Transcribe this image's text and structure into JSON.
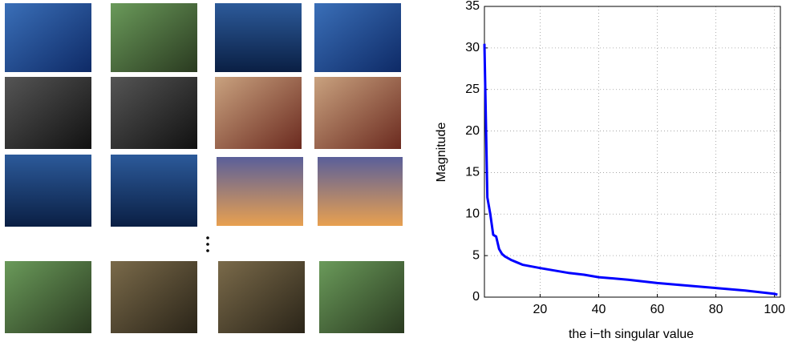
{
  "chart_data": {
    "type": "line",
    "xlabel": "the i−th singular value",
    "ylabel": "Magnitude",
    "x": [
      1,
      2,
      3,
      4,
      5,
      6,
      7,
      8,
      10,
      12,
      14,
      20,
      25,
      30,
      35,
      40,
      50,
      60,
      70,
      80,
      90,
      100,
      101
    ],
    "series": [
      {
        "color": "#0000ff",
        "values": [
          30.5,
          12,
          10,
          7.5,
          7.3,
          5.8,
          5.2,
          4.9,
          4.5,
          4.2,
          3.9,
          3.5,
          3.2,
          2.9,
          2.7,
          2.4,
          2.1,
          1.7,
          1.4,
          1.1,
          0.8,
          0.4,
          0.3
        ]
      }
    ],
    "xlim": [
      1,
      102
    ],
    "ylim": [
      0,
      35
    ],
    "xticks": [
      20,
      40,
      60,
      80,
      100
    ],
    "yticks": [
      0,
      5,
      10,
      15,
      20,
      25,
      30,
      35
    ],
    "grid": true
  }
}
